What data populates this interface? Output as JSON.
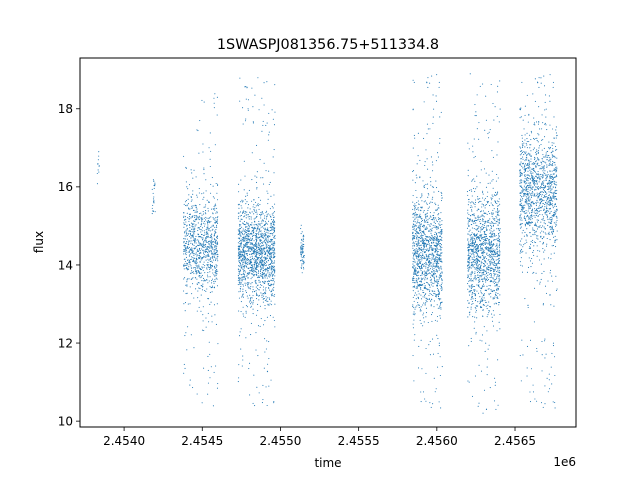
{
  "chart_data": {
    "type": "scatter",
    "title": "1SWASPJ081356.75+511334.8",
    "xlabel": "time",
    "ylabel": "flux",
    "x_offset_label": "1e6",
    "xlim": [
      2453718,
      2456890
    ],
    "ylim": [
      9.85,
      19.3
    ],
    "x_ticks": [
      2454000,
      2454500,
      2455000,
      2455500,
      2456000,
      2456500
    ],
    "x_tick_labels": [
      "2.4540",
      "2.4545",
      "2.4550",
      "2.4555",
      "2.4560",
      "2.4565"
    ],
    "y_ticks": [
      10,
      12,
      14,
      16,
      18
    ],
    "y_tick_labels": [
      "10",
      "12",
      "14",
      "16",
      "18"
    ],
    "grid": false,
    "legend": "none",
    "marker_color": "#1f77b4",
    "clusters": [
      {
        "center": 2453835,
        "width": 8,
        "flux_mean": 16.5,
        "flux_sd": 0.3,
        "flux_min": 15.9,
        "flux_max": 16.9,
        "count": 12
      },
      {
        "center": 2454190,
        "width": 10,
        "flux_mean": 15.8,
        "flux_sd": 0.35,
        "flux_min": 15.0,
        "flux_max": 16.5,
        "count": 25
      },
      {
        "center": 2454420,
        "width": 40,
        "flux_mean": 14.6,
        "flux_sd": 0.55,
        "flux_min": 10.7,
        "flux_max": 16.9,
        "count": 320
      },
      {
        "center": 2454530,
        "width": 70,
        "flux_mean": 14.4,
        "flux_sd": 0.7,
        "flux_min": 10.3,
        "flux_max": 18.5,
        "count": 620
      },
      {
        "center": 2454790,
        "width": 60,
        "flux_mean": 14.35,
        "flux_sd": 0.6,
        "flux_min": 10.3,
        "flux_max": 18.8,
        "count": 750
      },
      {
        "center": 2454905,
        "width": 60,
        "flux_mean": 14.25,
        "flux_sd": 0.6,
        "flux_min": 10.3,
        "flux_max": 18.8,
        "count": 750
      },
      {
        "center": 2455140,
        "width": 12,
        "flux_mean": 14.4,
        "flux_sd": 0.25,
        "flux_min": 13.8,
        "flux_max": 15.1,
        "count": 70
      },
      {
        "center": 2455940,
        "width": 95,
        "flux_mean": 14.3,
        "flux_sd": 0.75,
        "flux_min": 10.3,
        "flux_max": 18.9,
        "count": 1200
      },
      {
        "center": 2456300,
        "width": 105,
        "flux_mean": 14.3,
        "flux_sd": 0.75,
        "flux_min": 10.2,
        "flux_max": 18.9,
        "count": 1250
      },
      {
        "center": 2456650,
        "width": 120,
        "flux_mean": 15.9,
        "flux_sd": 0.75,
        "flux_min": 10.3,
        "flux_max": 18.9,
        "count": 1250
      }
    ]
  }
}
